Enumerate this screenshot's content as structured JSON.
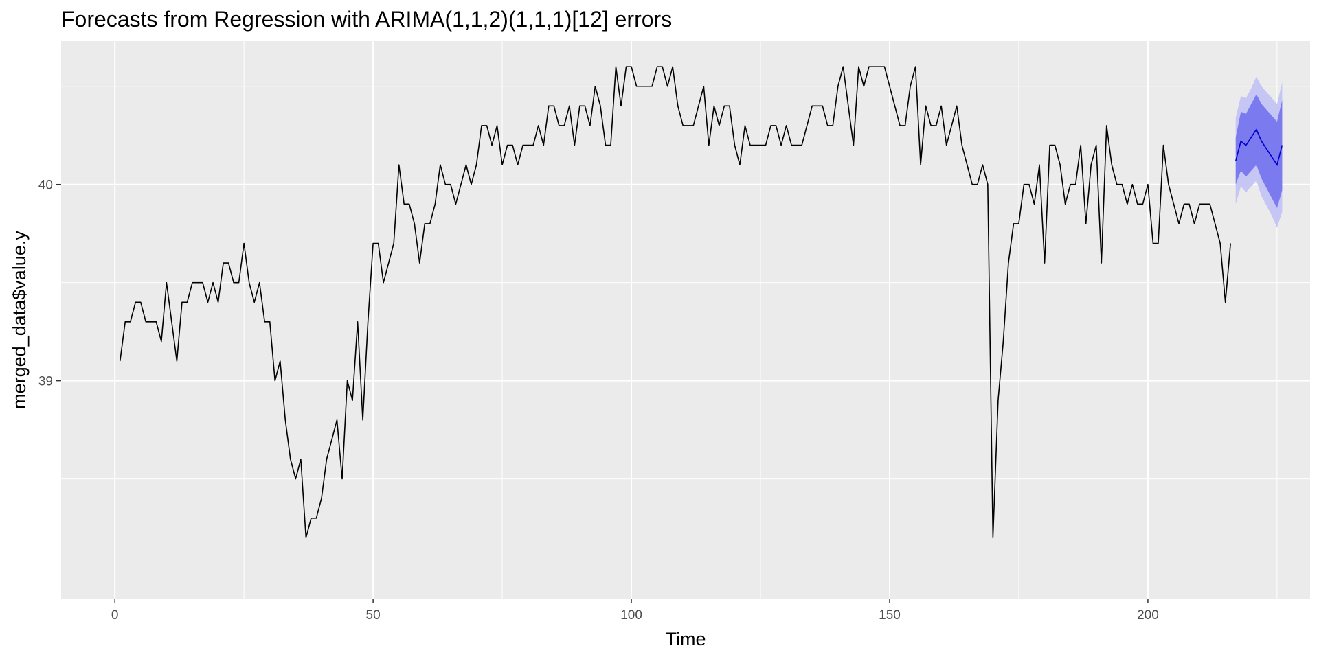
{
  "chart_data": {
    "type": "line",
    "title": "Forecasts from Regression with ARIMA(1,1,2)(1,1,1)[12] errors",
    "xlabel": "Time",
    "ylabel": "merged_data$value.y",
    "xlim": [
      -10.4,
      231.4
    ],
    "ylim": [
      37.89,
      40.73
    ],
    "x_ticks": [
      0,
      50,
      100,
      150,
      200
    ],
    "y_ticks": [
      39,
      40
    ],
    "grid": true,
    "legend": "none",
    "colors": {
      "panel_bg": "#ebebeb",
      "grid": "#ffffff",
      "series": "#000000",
      "forecast_line": "#0000cc",
      "pi80": "#7b7bef",
      "pi95": "#c6c6f5"
    },
    "series": [
      {
        "x_start": 1,
        "values": [
          39.1,
          39.3,
          39.3,
          39.4,
          39.4,
          39.3,
          39.3,
          39.3,
          39.2,
          39.5,
          39.3,
          39.1,
          39.4,
          39.4,
          39.5,
          39.5,
          39.5,
          39.4,
          39.5,
          39.4,
          39.6,
          39.6,
          39.5,
          39.5,
          39.7,
          39.5,
          39.4,
          39.5,
          39.3,
          39.3,
          39.0,
          39.1,
          38.8,
          38.6,
          38.5,
          38.6,
          38.2,
          38.3,
          38.3,
          38.4,
          38.6,
          38.7,
          38.8,
          38.5,
          39.0,
          38.9,
          39.3,
          38.8,
          39.3,
          39.7,
          39.7,
          39.5,
          39.6,
          39.7,
          40.1,
          39.9,
          39.9,
          39.8,
          39.6,
          39.8,
          39.8,
          39.9,
          40.1,
          40.0,
          40.0,
          39.9,
          40.0,
          40.1,
          40.0,
          40.1,
          40.3,
          40.3,
          40.2,
          40.3,
          40.1,
          40.2,
          40.2,
          40.1,
          40.2,
          40.2,
          40.2,
          40.3,
          40.2,
          40.4,
          40.4,
          40.3,
          40.3,
          40.4,
          40.2,
          40.4,
          40.4,
          40.3,
          40.5,
          40.4,
          40.2,
          40.2,
          40.6,
          40.4,
          40.6,
          40.6,
          40.5,
          40.5,
          40.5,
          40.5,
          40.6,
          40.6,
          40.5,
          40.6,
          40.4,
          40.3,
          40.3,
          40.3,
          40.4,
          40.5,
          40.2,
          40.4,
          40.3,
          40.4,
          40.4,
          40.2,
          40.1,
          40.3,
          40.2,
          40.2,
          40.2,
          40.2,
          40.3,
          40.3,
          40.2,
          40.3,
          40.2,
          40.2,
          40.2,
          40.3,
          40.4,
          40.4,
          40.4,
          40.3,
          40.3,
          40.5,
          40.6,
          40.4,
          40.2,
          40.6,
          40.5,
          40.6,
          40.6,
          40.6,
          40.6,
          40.5,
          40.4,
          40.3,
          40.3,
          40.5,
          40.6,
          40.1,
          40.4,
          40.3,
          40.3,
          40.4,
          40.2,
          40.3,
          40.4,
          40.2,
          40.1,
          40.0,
          40.0,
          40.1,
          40.0,
          38.2,
          38.9,
          39.2,
          39.6,
          39.8,
          39.8,
          40.0,
          40.0,
          39.9,
          40.1,
          39.6,
          40.2,
          40.2,
          40.1,
          39.9,
          40.0,
          40.0,
          40.2,
          39.8,
          40.1,
          40.2,
          39.6,
          40.3,
          40.1,
          40.0,
          40.0,
          39.9,
          40.0,
          39.9,
          39.9,
          40.0,
          39.7,
          39.7,
          40.2,
          40.0,
          39.9,
          39.8,
          39.9,
          39.9,
          39.8,
          39.9,
          39.9,
          39.9,
          39.8,
          39.7,
          39.4,
          39.7
        ]
      }
    ],
    "forecast": {
      "x_start": 217,
      "mean": [
        40.12,
        40.22,
        40.2,
        40.24,
        40.28,
        40.22,
        40.18,
        40.14,
        40.1,
        40.2
      ],
      "lo80": [
        40.0,
        40.07,
        40.04,
        40.07,
        40.1,
        40.03,
        39.98,
        39.93,
        39.88,
        39.97
      ],
      "hi80": [
        40.24,
        40.37,
        40.36,
        40.41,
        40.46,
        40.41,
        40.38,
        40.35,
        40.32,
        40.43
      ],
      "lo95": [
        39.9,
        39.99,
        39.96,
        39.99,
        40.02,
        39.94,
        39.89,
        39.84,
        39.78,
        39.86
      ],
      "hi95": [
        40.34,
        40.45,
        40.44,
        40.49,
        40.55,
        40.5,
        40.47,
        40.44,
        40.41,
        40.52
      ]
    }
  }
}
